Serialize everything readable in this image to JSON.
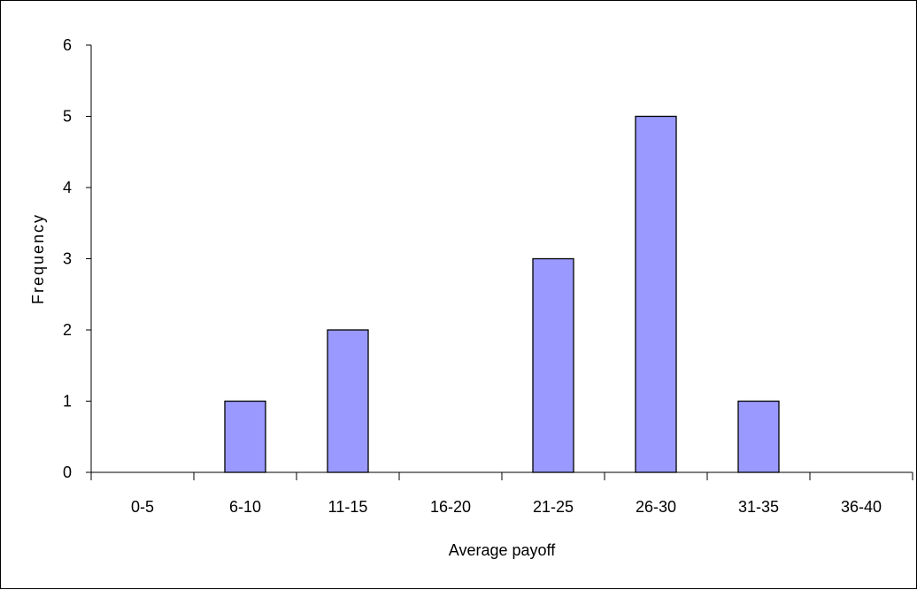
{
  "chart_data": {
    "type": "bar",
    "title": "",
    "xlabel": "Average payoff",
    "ylabel": "Frequency",
    "categories": [
      "0-5",
      "6-10",
      "11-15",
      "16-20",
      "21-25",
      "26-30",
      "31-35",
      "36-40"
    ],
    "values": [
      0,
      1,
      2,
      0,
      3,
      5,
      1,
      0
    ],
    "ylim": [
      0,
      6
    ],
    "yticks": [
      "0",
      "1",
      "2",
      "3",
      "4",
      "5",
      "6"
    ],
    "grid": false,
    "legend": "none",
    "colors": {
      "bar_fill": "#9999ff",
      "bar_stroke": "#000000",
      "axis": "#000000",
      "background": "#ffffff"
    }
  }
}
